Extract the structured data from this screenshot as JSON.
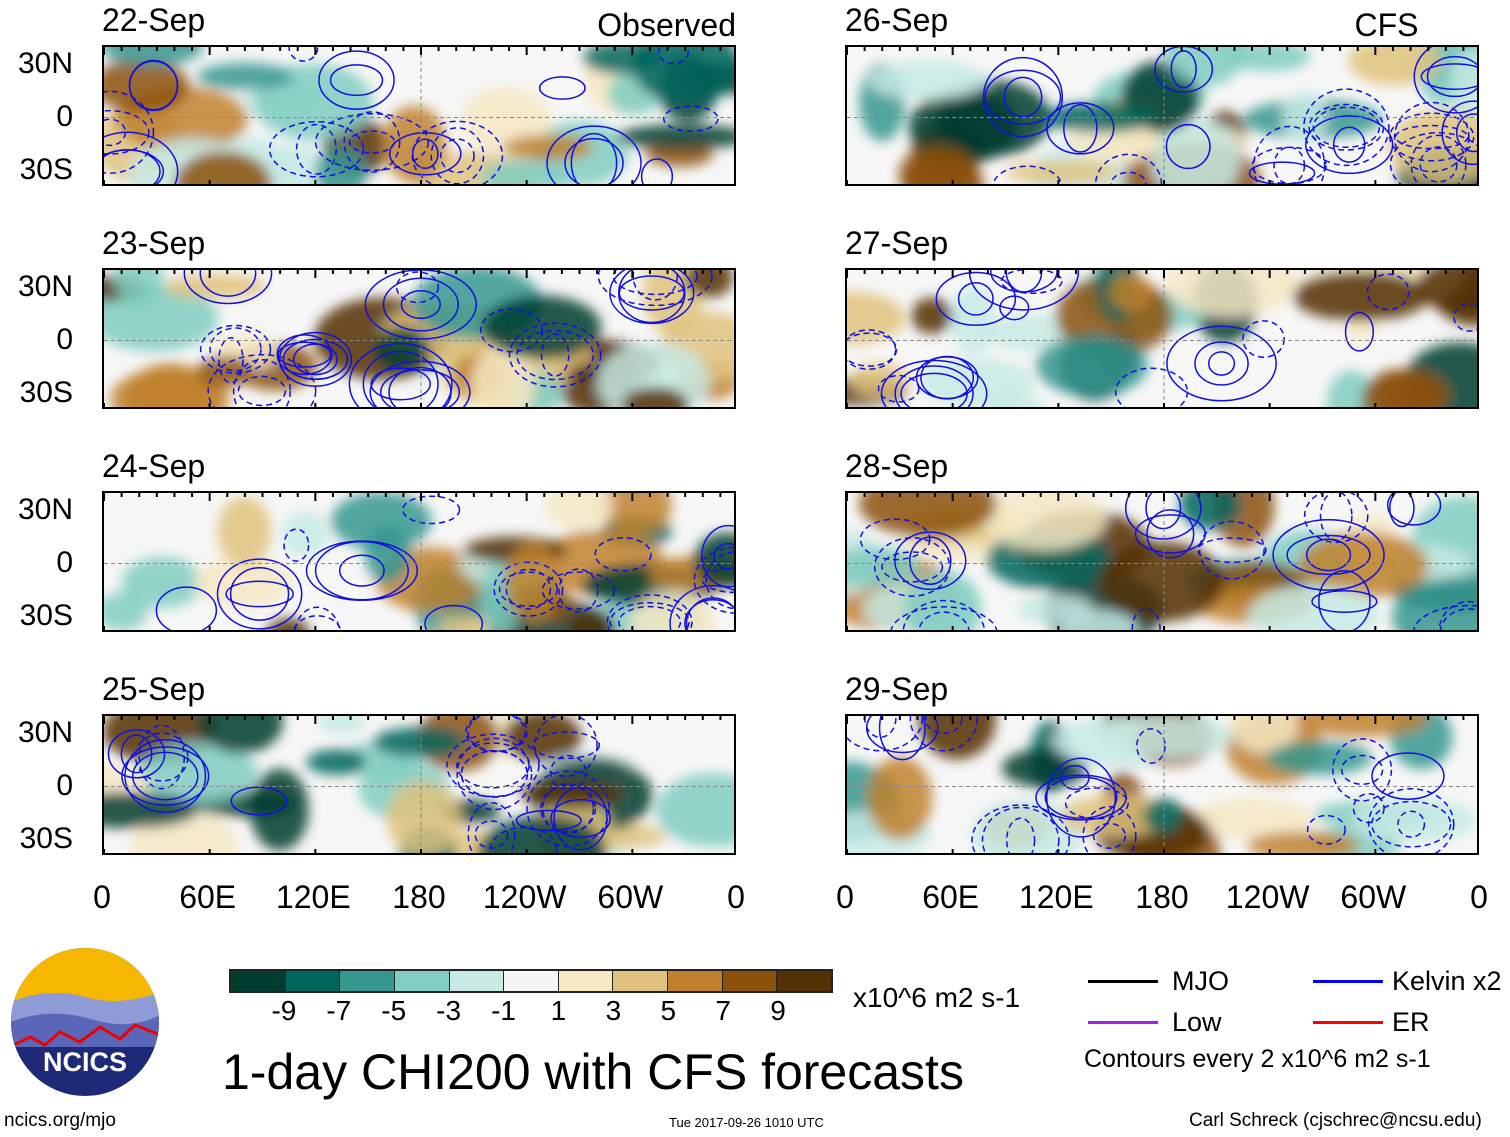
{
  "chart_data": {
    "type": "heatmap",
    "title": "1-day CHI200 with CFS forecasts",
    "units": "x10^6 m2 s-1",
    "columns": [
      {
        "label": "Observed",
        "panels": [
          "22-Sep",
          "23-Sep",
          "24-Sep",
          "25-Sep"
        ]
      },
      {
        "label": "CFS Forecast",
        "panels": [
          "26-Sep",
          "27-Sep",
          "28-Sep",
          "29-Sep"
        ]
      }
    ],
    "lat_ticks": [
      "30N",
      "0",
      "30S"
    ],
    "lon_ticks": [
      "0",
      "60E",
      "120E",
      "180",
      "120W",
      "60W",
      "0"
    ],
    "colorbar": {
      "labels": [
        "-9",
        "-7",
        "-5",
        "-3",
        "-1",
        "1",
        "3",
        "5",
        "7",
        "9"
      ],
      "colors": [
        "#003c30",
        "#01665e",
        "#35978f",
        "#80cdc1",
        "#c7eae5",
        "#f5f5f5",
        "#f6e8c3",
        "#dfc27d",
        "#bf812d",
        "#8c510a",
        "#543005"
      ]
    },
    "legend": [
      {
        "label": "MJO",
        "color": "#000000"
      },
      {
        "label": "Kelvin x2",
        "color": "#0000ff"
      },
      {
        "label": "Low",
        "color": "#a020f0"
      },
      {
        "label": "ER",
        "color": "#ff0000"
      }
    ],
    "contour_note": "Contours every 2 x10^6 m2 s-1"
  },
  "footer": {
    "logo_text": "NCICS",
    "url": "ncics.org/mjo",
    "timestamp": "Tue 2017-09-26 1010 UTC",
    "credit": "Carl Schreck (cjschrec@ncsu.edu)"
  }
}
